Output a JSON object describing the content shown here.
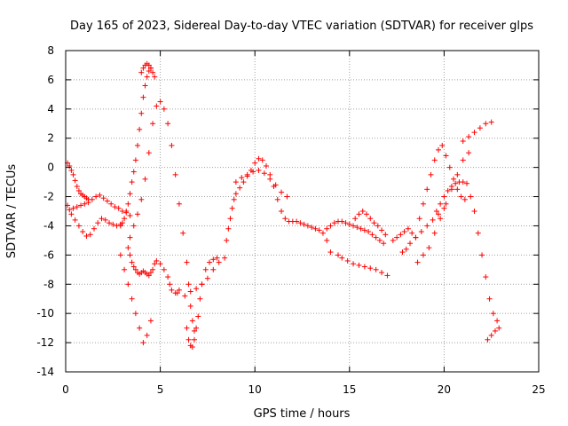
{
  "chart_data": {
    "type": "scatter",
    "title": "Day 165 of 2023, Sidereal Day-to-day VTEC variation (SDTVAR) for receiver glps",
    "xlabel": "GPS time / hours",
    "ylabel": "SDTVAR / TECUs",
    "xlim": [
      0,
      25
    ],
    "ylim": [
      -14,
      8
    ],
    "xticks": [
      0,
      5,
      10,
      15,
      20,
      25
    ],
    "yticks": [
      -14,
      -12,
      -10,
      -8,
      -6,
      -4,
      -2,
      0,
      2,
      4,
      6,
      8
    ],
    "grid": true,
    "marker": "+",
    "color": "#ff0000",
    "series": [
      {
        "name": "SDTVAR",
        "x": [
          0.1,
          0.2,
          0.3,
          0.4,
          0.5,
          0.6,
          0.7,
          0.8,
          0.9,
          1.0,
          1.1,
          1.2,
          0.4,
          0.6,
          0.8,
          1.0,
          1.2,
          1.4,
          1.6,
          1.8,
          2.0,
          2.2,
          2.4,
          2.6,
          2.8,
          3.0,
          3.2,
          3.4,
          0.1,
          0.2,
          0.3,
          0.5,
          0.7,
          0.9,
          1.1,
          1.3,
          1.5,
          1.7,
          1.9,
          2.1,
          2.3,
          2.5,
          2.7,
          2.9,
          2.9,
          3.0,
          3.1,
          3.2,
          3.3,
          3.4,
          3.5,
          3.6,
          3.7,
          3.8,
          3.9,
          4.0,
          4.1,
          4.2,
          4.3,
          4.4,
          4.5,
          4.0,
          4.1,
          4.2,
          4.3,
          4.4,
          4.5,
          4.6,
          4.7,
          3.3,
          3.4,
          3.5,
          3.6,
          3.7,
          3.8,
          3.9,
          4.0,
          4.1,
          4.2,
          4.3,
          4.4,
          4.5,
          4.6,
          4.7,
          4.8,
          5.0,
          5.2,
          5.4,
          5.5,
          5.6,
          5.8,
          5.9,
          6.0,
          3.4,
          3.6,
          3.8,
          4.0,
          4.2,
          4.4,
          4.6,
          4.8,
          5.0,
          5.2,
          5.4,
          5.6,
          5.8,
          6.0,
          6.2,
          6.4,
          6.5,
          6.6,
          6.7,
          6.8,
          2.9,
          3.1,
          3.3,
          3.5,
          3.7,
          3.9,
          4.1,
          4.3,
          4.5,
          6.4,
          6.5,
          6.6,
          6.7,
          6.8,
          6.9,
          7.0,
          7.1,
          7.2,
          7.4,
          7.6,
          7.8,
          8.0,
          6.3,
          6.6,
          6.9,
          7.2,
          7.5,
          7.8,
          8.1,
          8.4,
          8.5,
          8.6,
          8.7,
          8.8,
          8.9,
          9.0,
          9.2,
          9.4,
          9.6,
          9.8,
          10.0,
          10.2,
          10.4,
          10.6,
          10.8,
          11.0,
          11.2,
          11.4,
          11.6,
          11.8,
          12.0,
          12.2,
          12.4,
          12.6,
          12.8,
          13.0,
          13.2,
          13.4,
          13.6,
          13.8,
          14.0,
          9.0,
          9.3,
          9.6,
          9.9,
          10.2,
          10.5,
          10.8,
          11.1,
          11.4,
          11.7,
          13.8,
          14.0,
          14.2,
          14.4,
          14.6,
          14.8,
          15.0,
          15.2,
          15.4,
          15.6,
          15.8,
          16.0,
          16.2,
          16.4,
          16.6,
          16.8,
          14.4,
          14.6,
          14.9,
          15.2,
          15.5,
          15.8,
          16.1,
          16.4,
          16.7,
          17.0,
          15.3,
          15.5,
          15.7,
          15.9,
          16.1,
          16.3,
          16.5,
          16.7,
          16.9,
          17.3,
          17.5,
          17.7,
          17.9,
          18.1,
          18.3,
          18.5,
          18.7,
          18.9,
          19.1,
          19.3,
          19.5,
          19.7,
          19.9,
          20.1,
          20.3,
          20.5,
          20.7,
          20.9,
          21.1,
          18.6,
          18.9,
          19.2,
          19.5,
          19.8,
          20.1,
          20.4,
          20.7,
          21.0,
          21.3,
          19.6,
          19.8,
          20.0,
          20.2,
          20.4,
          20.6,
          20.8,
          21.0,
          21.2,
          21.4,
          21.6,
          21.8,
          22.0,
          22.2,
          22.4,
          22.6,
          22.8,
          21.0,
          21.3,
          21.6,
          21.9,
          22.2,
          22.5,
          22.3,
          22.5,
          22.7,
          22.9,
          17.8,
          18.0,
          18.2,
          18.5,
          18.8,
          19.1,
          19.4,
          19.7,
          20.0
        ],
        "y": [
          0.3,
          0.1,
          -0.2,
          -0.5,
          -0.9,
          -1.3,
          -1.6,
          -1.8,
          -1.9,
          -2.0,
          -2.1,
          -2.2,
          -2.8,
          -2.7,
          -2.6,
          -2.5,
          -2.4,
          -2.2,
          -2.0,
          -1.9,
          -2.1,
          -2.3,
          -2.5,
          -2.7,
          -2.8,
          -3.0,
          -3.1,
          -3.3,
          -2.6,
          -2.9,
          -3.2,
          -3.6,
          -4.0,
          -4.4,
          -4.7,
          -4.6,
          -4.2,
          -3.8,
          -3.5,
          -3.6,
          -3.8,
          -3.9,
          -4.0,
          -3.9,
          -4.0,
          -3.8,
          -3.5,
          -3.0,
          -2.5,
          -1.8,
          -1.0,
          -0.3,
          0.5,
          1.5,
          2.6,
          3.7,
          4.8,
          5.6,
          6.2,
          6.6,
          6.8,
          6.5,
          6.8,
          7.0,
          7.1,
          7.0,
          6.8,
          6.5,
          6.2,
          -5.5,
          -6.0,
          -6.5,
          -6.8,
          -7.0,
          -7.2,
          -7.3,
          -7.2,
          -7.1,
          -7.2,
          -7.3,
          -7.4,
          -7.2,
          -7.0,
          -6.6,
          -6.4,
          -6.6,
          -7.0,
          -7.5,
          -8.0,
          -8.4,
          -8.6,
          -8.6,
          -8.4,
          -4.8,
          -4.0,
          -3.2,
          -2.2,
          -0.8,
          1.0,
          3.0,
          4.2,
          4.5,
          4.0,
          3.0,
          1.5,
          -0.5,
          -2.5,
          -4.5,
          -6.5,
          -8.0,
          -9.5,
          -10.5,
          -11.2,
          -6.0,
          -7.0,
          -8.0,
          -9.0,
          -10.0,
          -11.0,
          -12.0,
          -11.5,
          -10.5,
          -11.0,
          -11.8,
          -12.2,
          -12.3,
          -11.8,
          -11.0,
          -10.2,
          -9.0,
          -8.0,
          -7.0,
          -6.5,
          -6.3,
          -6.2,
          -8.8,
          -8.5,
          -8.3,
          -8.0,
          -7.6,
          -7.0,
          -6.5,
          -6.2,
          -5.0,
          -4.2,
          -3.5,
          -2.8,
          -2.2,
          -1.8,
          -1.4,
          -1.0,
          -0.6,
          -0.2,
          0.3,
          0.6,
          0.5,
          0.1,
          -0.5,
          -1.3,
          -2.2,
          -3.0,
          -3.5,
          -3.7,
          -3.7,
          -3.7,
          -3.8,
          -3.9,
          -4.0,
          -4.1,
          -4.2,
          -4.3,
          -4.5,
          -5.0,
          -5.8,
          -1.0,
          -0.7,
          -0.5,
          -0.3,
          -0.2,
          -0.4,
          -0.8,
          -1.2,
          -1.7,
          -2.0,
          -4.2,
          -4.0,
          -3.8,
          -3.7,
          -3.7,
          -3.8,
          -3.9,
          -4.0,
          -4.1,
          -4.2,
          -4.3,
          -4.4,
          -4.6,
          -4.8,
          -5.0,
          -5.2,
          -6.0,
          -6.2,
          -6.4,
          -6.6,
          -6.7,
          -6.8,
          -6.9,
          -7.0,
          -7.2,
          -7.4,
          -3.5,
          -3.2,
          -3.0,
          -3.2,
          -3.5,
          -3.8,
          -4.0,
          -4.3,
          -4.6,
          -5.0,
          -4.8,
          -4.6,
          -4.4,
          -4.2,
          -4.5,
          -4.8,
          -3.5,
          -2.5,
          -1.5,
          -0.5,
          0.5,
          1.2,
          1.5,
          0.8,
          0.0,
          -0.8,
          -1.5,
          -2.0,
          -2.2,
          -6.5,
          -6.0,
          -5.5,
          -4.5,
          -3.5,
          -2.5,
          -1.5,
          -0.5,
          0.5,
          1.0,
          -3.0,
          -2.5,
          -2.0,
          -1.6,
          -1.3,
          -1.1,
          -1.0,
          -1.0,
          -1.1,
          -2.0,
          -3.0,
          -4.5,
          -6.0,
          -7.5,
          -9.0,
          -10.0,
          -10.5,
          1.8,
          2.1,
          2.4,
          2.7,
          3.0,
          3.1,
          -11.8,
          -11.5,
          -11.2,
          -11.0,
          -5.8,
          -5.6,
          -5.2,
          -4.8,
          -4.4,
          -4.0,
          -3.6,
          -3.2,
          -2.8
        ]
      }
    ]
  }
}
